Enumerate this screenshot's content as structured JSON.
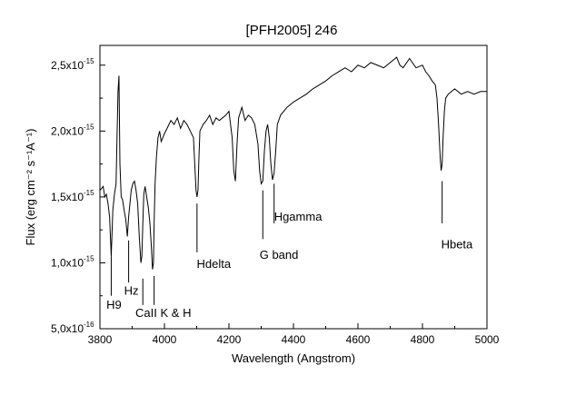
{
  "chart_data": {
    "type": "line",
    "title": "[PFH2005] 246",
    "xlabel": "Wavelength (Angstrom)",
    "ylabel": "Flux (erg cm⁻² s⁻¹A⁻¹)",
    "xlim": [
      3800,
      5000
    ],
    "ylim": [
      5e-16,
      2.65e-15
    ],
    "x_ticks": [
      3800,
      4000,
      4200,
      4400,
      4600,
      4800,
      5000
    ],
    "x_minor_ticks": [
      3900,
      4100,
      4300,
      4500,
      4700,
      4900
    ],
    "y_ticks": [
      {
        "value": 5e-16,
        "mantissa": "5,0x10",
        "exponent": "-16"
      },
      {
        "value": 1e-15,
        "mantissa": "1,0x10",
        "exponent": "-15"
      },
      {
        "value": 1.5e-15,
        "mantissa": "1,5x10",
        "exponent": "-15"
      },
      {
        "value": 2e-15,
        "mantissa": "2,0x10",
        "exponent": "-15"
      },
      {
        "value": 2.5e-15,
        "mantissa": "2,5x10",
        "exponent": "-15"
      }
    ],
    "y_minor_ticks": [
      7.5e-16,
      1.25e-15,
      1.75e-15,
      2.25e-15
    ],
    "grid": false,
    "series": [
      {
        "x": [
          3800,
          3810,
          3815,
          3820,
          3825,
          3830,
          3835,
          3840,
          3845,
          3850,
          3853,
          3856,
          3859,
          3862,
          3866,
          3870,
          3875,
          3880,
          3885,
          3889,
          3893,
          3897,
          3902,
          3907,
          3912,
          3917,
          3922,
          3927,
          3930,
          3933,
          3936,
          3940,
          3945,
          3950,
          3955,
          3960,
          3963,
          3966,
          3968,
          3971,
          3975,
          3980,
          3985,
          3990,
          4000,
          4010,
          4020,
          4030,
          4040,
          4050,
          4060,
          4070,
          4080,
          4090,
          4095,
          4098,
          4101,
          4104,
          4107,
          4110,
          4120,
          4130,
          4140,
          4150,
          4160,
          4170,
          4180,
          4190,
          4200,
          4210,
          4215,
          4220,
          4225,
          4230,
          4240,
          4250,
          4260,
          4270,
          4280,
          4290,
          4295,
          4300,
          4305,
          4310,
          4315,
          4320,
          4325,
          4330,
          4335,
          4340,
          4345,
          4350,
          4360,
          4370,
          4380,
          4390,
          4400,
          4420,
          4440,
          4460,
          4480,
          4500,
          4520,
          4540,
          4560,
          4580,
          4600,
          4620,
          4640,
          4660,
          4680,
          4700,
          4720,
          4730,
          4740,
          4760,
          4780,
          4800,
          4810,
          4820,
          4830,
          4840,
          4845,
          4850,
          4855,
          4858,
          4861,
          4864,
          4868,
          4872,
          4880,
          4890,
          4900,
          4920,
          4940,
          4960,
          4980,
          5000
        ],
        "y": [
          1.55e-15,
          1.58e-15,
          1.5e-15,
          1.52e-15,
          1.45e-15,
          1.35e-15,
          1.05e-15,
          1.4e-15,
          1.52e-15,
          1.6e-15,
          1.95e-15,
          2.3e-15,
          2.42e-15,
          1.75e-15,
          1.5e-15,
          1.48e-15,
          1.4e-15,
          1.33e-15,
          1.2e-15,
          1.35e-15,
          1.45e-15,
          1.55e-15,
          1.6e-15,
          1.62e-15,
          1.55e-15,
          1.45e-15,
          1.2e-15,
          1e-15,
          1.05e-15,
          1.3e-15,
          1.52e-15,
          1.58e-15,
          1.5e-15,
          1.42e-15,
          1.3e-15,
          1.1e-15,
          9.5e-16,
          1e-15,
          1.3e-15,
          1.6e-15,
          1.8e-15,
          1.95e-15,
          2e-15,
          1.92e-15,
          1.98e-15,
          2.03e-15,
          2.08e-15,
          2.05e-15,
          2.1e-15,
          2.02e-15,
          2.08e-15,
          2.05e-15,
          2e-15,
          1.95e-15,
          1.7e-15,
          1.55e-15,
          1.5e-15,
          1.55e-15,
          1.8e-15,
          2e-15,
          2.05e-15,
          2.08e-15,
          2.12e-15,
          2.05e-15,
          2.1e-15,
          2.08e-15,
          2.1e-15,
          2.12e-15,
          2.15e-15,
          1.95e-15,
          1.7e-15,
          1.62e-15,
          1.9e-15,
          2.1e-15,
          2.18e-15,
          2.08e-15,
          2.12e-15,
          2.1e-15,
          2.05e-15,
          1.9e-15,
          1.7e-15,
          1.6e-15,
          1.62e-15,
          1.85e-15,
          2e-15,
          2.05e-15,
          1.95e-15,
          1.75e-15,
          1.63e-15,
          1.68e-15,
          1.85e-15,
          2.05e-15,
          2.12e-15,
          2.15e-15,
          2.18e-15,
          2.2e-15,
          2.22e-15,
          2.25e-15,
          2.28e-15,
          2.32e-15,
          2.35e-15,
          2.38e-15,
          2.42e-15,
          2.45e-15,
          2.48e-15,
          2.45e-15,
          2.5e-15,
          2.48e-15,
          2.52e-15,
          2.5e-15,
          2.48e-15,
          2.52e-15,
          2.56e-15,
          2.5e-15,
          2.48e-15,
          2.55e-15,
          2.48e-15,
          2.5e-15,
          2.45e-15,
          2.42e-15,
          2.38e-15,
          2.35e-15,
          2.25e-15,
          2.05e-15,
          1.8e-15,
          1.7e-15,
          1.75e-15,
          1.95e-15,
          2.15e-15,
          2.25e-15,
          2.28e-15,
          2.3e-15,
          2.32e-15,
          2.28e-15,
          2.3e-15,
          2.28e-15,
          2.3e-15,
          2.3e-15
        ]
      }
    ],
    "annotations": [
      {
        "label": "H9",
        "x": 3835,
        "line_top": 1.05e-15,
        "line_bottom": 7.5e-16,
        "text_x": 3820,
        "text_y": 6.5e-16
      },
      {
        "label": "Hz",
        "x": 3889,
        "line_top": 1.17e-15,
        "line_bottom": 8.5e-16,
        "text_x": 3875,
        "text_y": 7.6e-16
      },
      {
        "label": "CaII K & H",
        "x": 3933,
        "line_top": 8.8e-16,
        "line_bottom": 6.8e-16,
        "text_x": 3910,
        "text_y": 5.9e-16
      },
      {
        "label": "",
        "x": 3968,
        "line_top": 9e-16,
        "line_bottom": 6.8e-16,
        "text_x": 0,
        "text_y": 0
      },
      {
        "label": "Hdelta",
        "x": 4101,
        "line_top": 1.45e-15,
        "line_bottom": 1.08e-15,
        "text_x": 4100,
        "text_y": 9.6e-16
      },
      {
        "label": "G band",
        "x": 4305,
        "line_top": 1.55e-15,
        "line_bottom": 1.18e-15,
        "text_x": 4295,
        "text_y": 1.03e-15
      },
      {
        "label": "Hgamma",
        "x": 4340,
        "line_top": 1.6e-15,
        "line_bottom": 1.3e-15,
        "text_x": 4340,
        "text_y": 1.32e-15
      },
      {
        "label": "Hbeta",
        "x": 4861,
        "line_top": 1.62e-15,
        "line_bottom": 1.3e-15,
        "text_x": 4858,
        "text_y": 1.11e-15
      }
    ]
  }
}
